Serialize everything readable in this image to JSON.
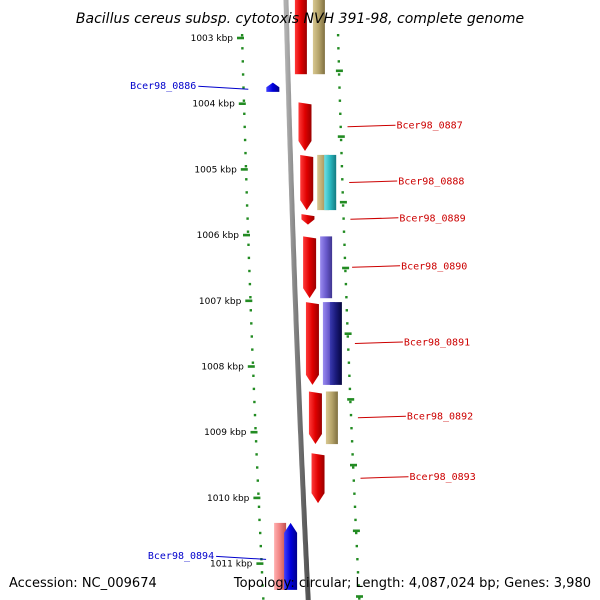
{
  "title": "Bacillus cereus subsp. cytotoxis NVH 391-98, complete genome",
  "footer": {
    "accession": "Accession: NC_009674",
    "summary": "Topology: circular; Length: 4,087,024 bp; Genes: 3,980"
  },
  "scale": {
    "unit": "kbp",
    "ticks": [
      {
        "label": "1003 kbp",
        "kbp": 1003
      },
      {
        "label": "1004 kbp",
        "kbp": 1004
      },
      {
        "label": "1005 kbp",
        "kbp": 1005
      },
      {
        "label": "1006 kbp",
        "kbp": 1006
      },
      {
        "label": "1007 kbp",
        "kbp": 1007
      },
      {
        "label": "1008 kbp",
        "kbp": 1008
      },
      {
        "label": "1009 kbp",
        "kbp": 1009
      },
      {
        "label": "1010 kbp",
        "kbp": 1010
      },
      {
        "label": "1011 kbp",
        "kbp": 1011
      }
    ]
  },
  "genes": [
    {
      "label": "Bcer98_0886",
      "strand": "reverse",
      "color": "#0000cc",
      "start_kbp": 1003.68,
      "end_kbp": 1003.82
    },
    {
      "label": "Bcer98_0887",
      "strand": "forward",
      "color": "#cc0000",
      "start_kbp": 1003.98,
      "end_kbp": 1004.72
    },
    {
      "label": "Bcer98_0888",
      "strand": "forward",
      "color": "#cc0000",
      "start_kbp": 1004.78,
      "end_kbp": 1005.62
    },
    {
      "label": "Bcer98_0889",
      "strand": "forward",
      "color": "#cc0000",
      "start_kbp": 1005.68,
      "end_kbp": 1005.84
    },
    {
      "label": "Bcer98_0890",
      "strand": "forward",
      "color": "#cc0000",
      "start_kbp": 1006.02,
      "end_kbp": 1006.96
    },
    {
      "label": "Bcer98_0891",
      "strand": "forward",
      "color": "#cc0000",
      "start_kbp": 1007.02,
      "end_kbp": 1008.28
    },
    {
      "label": "Bcer98_0892",
      "strand": "forward",
      "color": "#cc0000",
      "start_kbp": 1008.38,
      "end_kbp": 1009.18
    },
    {
      "label": "Bcer98_0893",
      "strand": "forward",
      "color": "#cc0000",
      "start_kbp": 1009.32,
      "end_kbp": 1010.08
    },
    {
      "label": "Bcer98_0894",
      "strand": "reverse",
      "color": "#0000cc",
      "start_kbp": 1010.38,
      "end_kbp": 1011.4
    }
  ],
  "colors": {
    "backbone": "#7a7a7a",
    "tick": "#228b22",
    "forward_label": "#cc0000",
    "reverse_label": "#0000cc",
    "cog_tan": "#b5a36a",
    "cog_cyan": "#2ab7c0",
    "cog_purple": "#6a5acd",
    "cog_navy": "#1a1a7a",
    "cog_pink": "#f08080"
  }
}
